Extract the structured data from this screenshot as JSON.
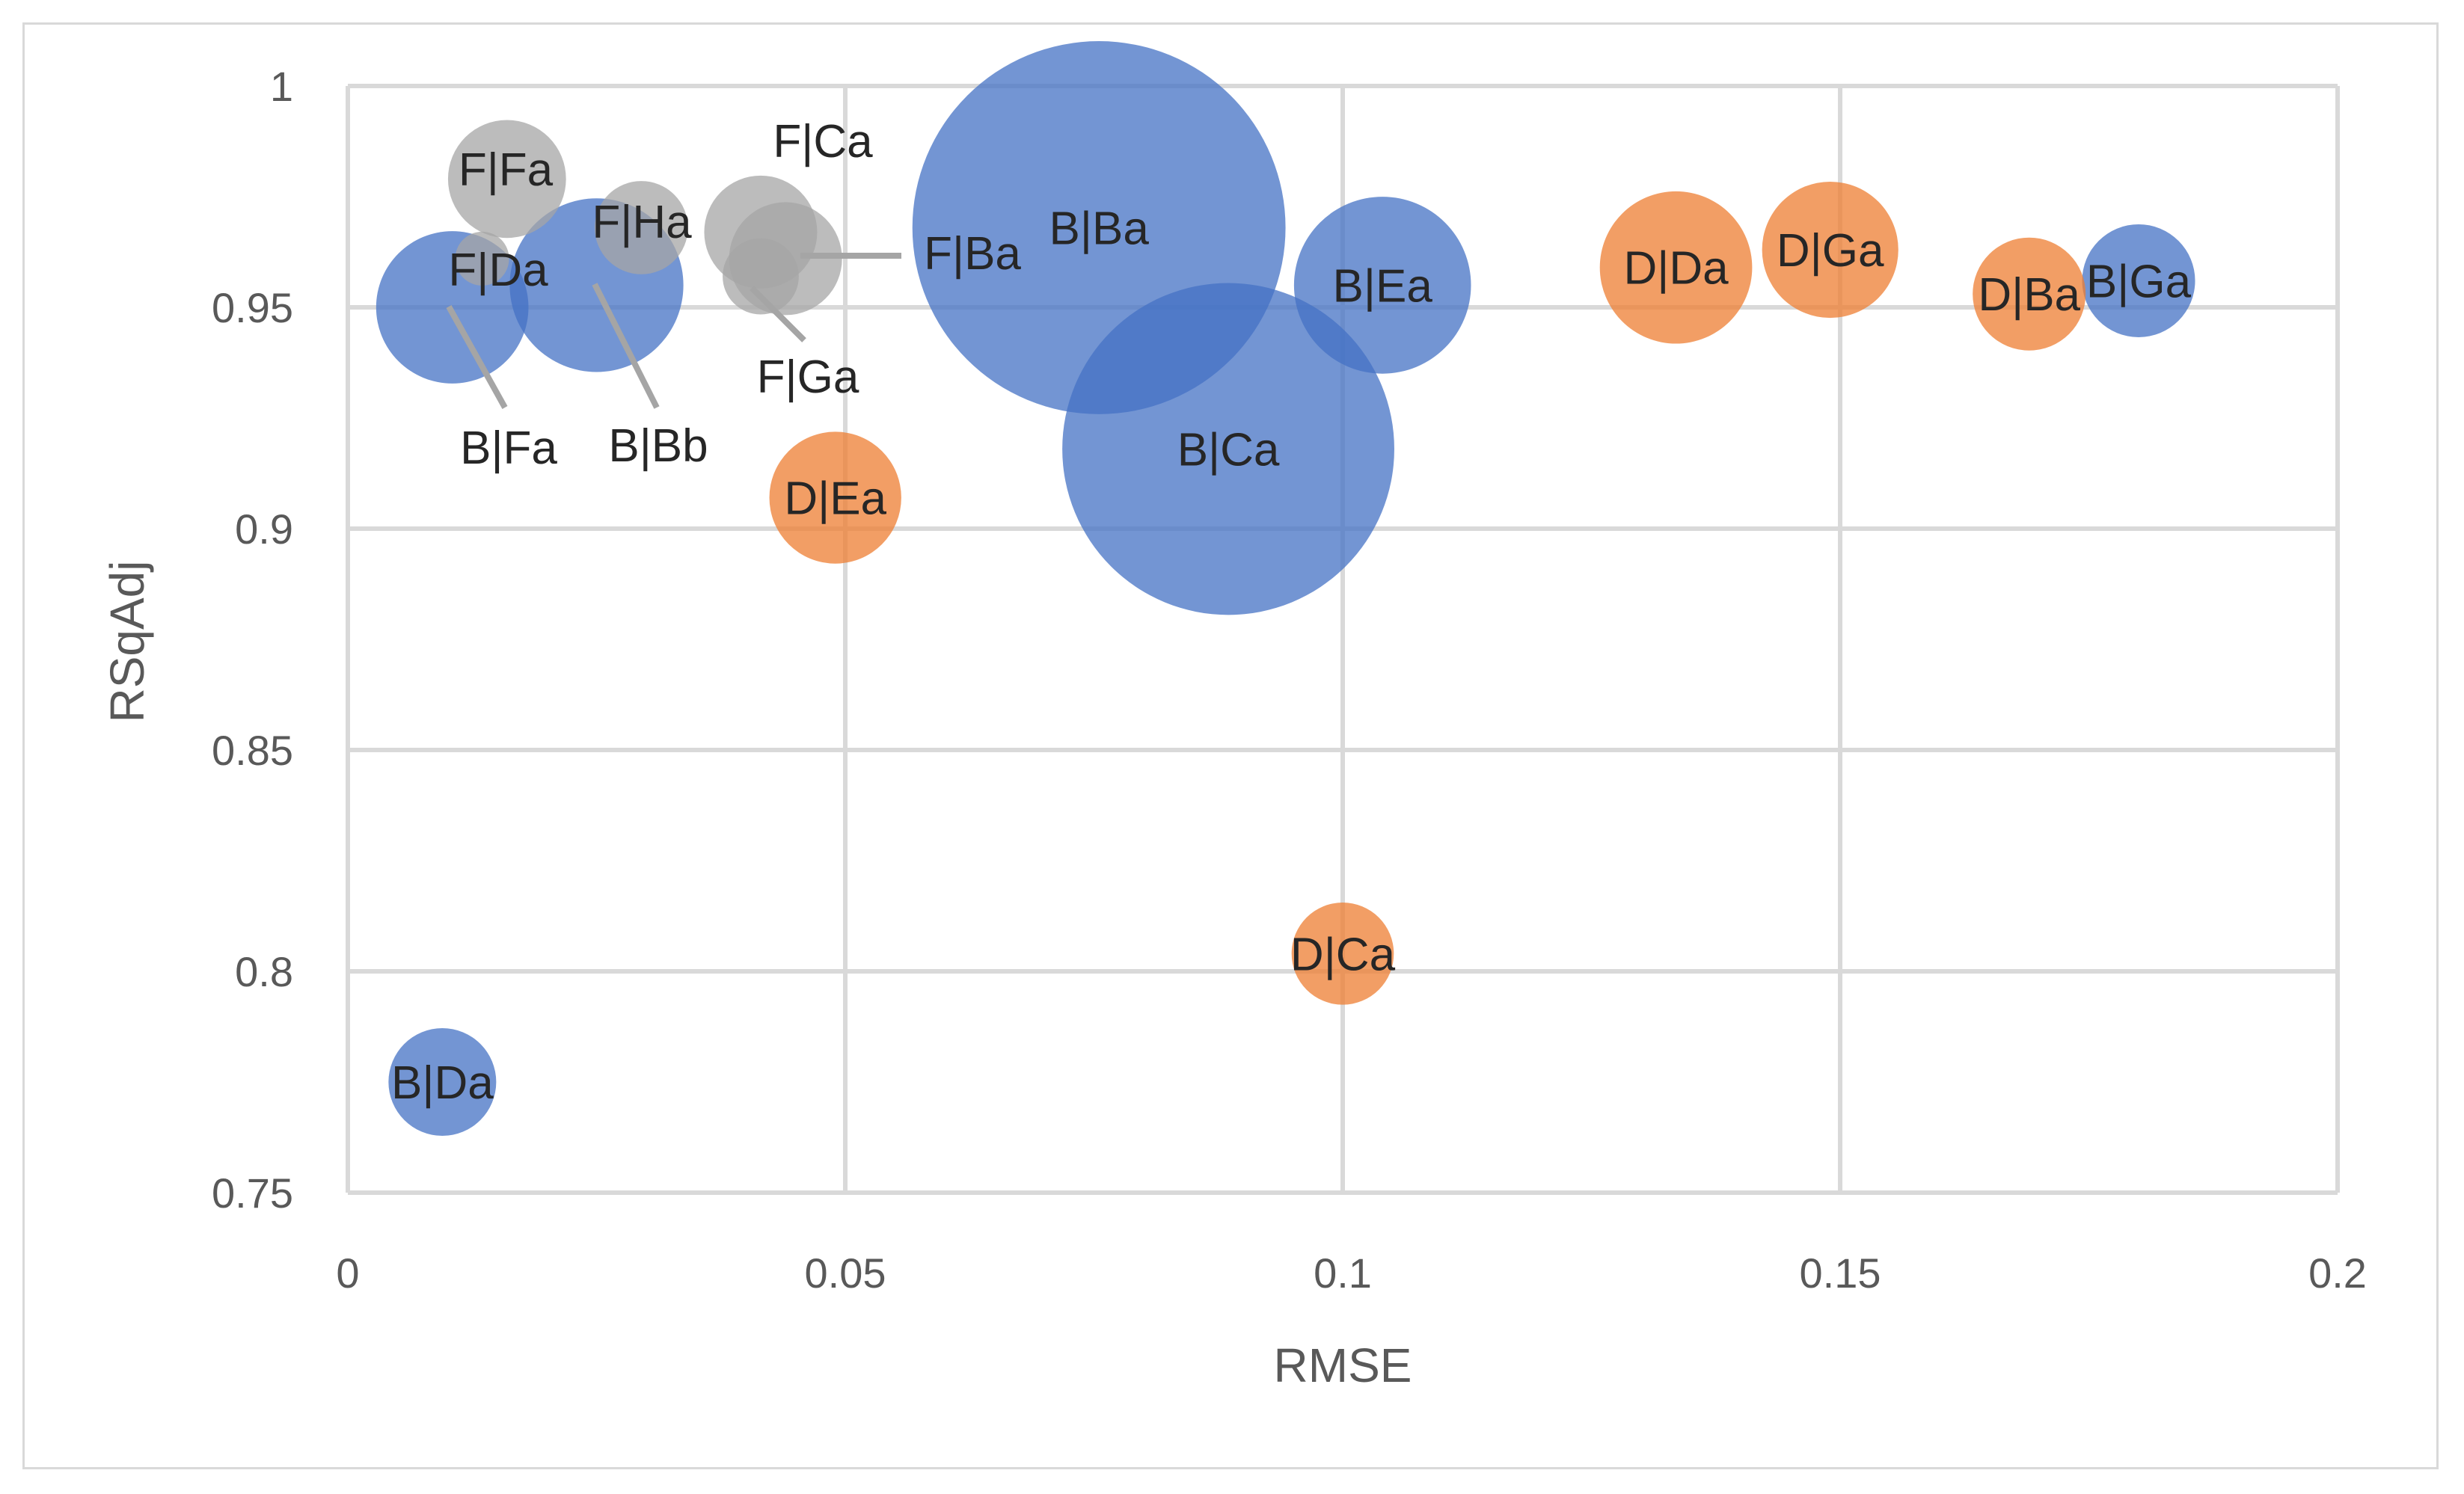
{
  "chart_data": {
    "type": "scatter",
    "subtype": "bubble",
    "title": "",
    "xlabel": "RMSE",
    "ylabel": "RSqAdj",
    "xlim": [
      0,
      0.2
    ],
    "ylim": [
      0.75,
      1
    ],
    "x_ticks": [
      0,
      0.05,
      0.1,
      0.15,
      0.2
    ],
    "y_ticks": [
      0.75,
      0.8,
      0.85,
      0.9,
      0.95,
      1
    ],
    "x_tick_labels": [
      "0",
      "0.05",
      "0.1",
      "0.15",
      "0.2"
    ],
    "y_tick_labels": [
      "0.75",
      "0.8",
      "0.85",
      "0.9",
      "0.95",
      "1"
    ],
    "grid": true,
    "legend": "none",
    "series": [
      {
        "name": "B",
        "color": "#4472c4",
        "points": [
          {
            "label": "B|Da",
            "x": 0.0095,
            "y": 0.775,
            "size": 1
          },
          {
            "label": "B|Fa",
            "x": 0.0105,
            "y": 0.95,
            "size": 2
          },
          {
            "label": "B|Bb",
            "x": 0.025,
            "y": 0.955,
            "size": 2.6
          },
          {
            "label": "B|Ba",
            "x": 0.0755,
            "y": 0.968,
            "size": 12
          },
          {
            "label": "B|Ca",
            "x": 0.0885,
            "y": 0.918,
            "size": 9.5
          },
          {
            "label": "B|Ea",
            "x": 0.104,
            "y": 0.955,
            "size": 2.7
          },
          {
            "label": "B|Ga",
            "x": 0.18,
            "y": 0.956,
            "size": 1.1
          }
        ]
      },
      {
        "name": "D",
        "color": "#ed7d31",
        "points": [
          {
            "label": "D|Ea",
            "x": 0.049,
            "y": 0.907,
            "size": 1.5
          },
          {
            "label": "D|Ca",
            "x": 0.1,
            "y": 0.804,
            "size": 0.9
          },
          {
            "label": "D|Da",
            "x": 0.1335,
            "y": 0.959,
            "size": 2.0
          },
          {
            "label": "D|Ga",
            "x": 0.149,
            "y": 0.963,
            "size": 1.6
          },
          {
            "label": "D|Ba",
            "x": 0.169,
            "y": 0.953,
            "size": 1.1
          }
        ]
      },
      {
        "name": "F",
        "color": "#a5a5a5",
        "points": [
          {
            "label": "F|Fa",
            "x": 0.016,
            "y": 0.979,
            "size": 1.2
          },
          {
            "label": "F|Da",
            "x": 0.0135,
            "y": 0.961,
            "size": 0.25
          },
          {
            "label": "F|Ha",
            "x": 0.0295,
            "y": 0.968,
            "size": 0.75
          },
          {
            "label": "F|Ca",
            "x": 0.0415,
            "y": 0.967,
            "size": 1.1
          },
          {
            "label": "F|Ga",
            "x": 0.0415,
            "y": 0.957,
            "size": 0.5
          },
          {
            "label": "F|Ba",
            "x": 0.044,
            "y": 0.961,
            "size": 1.1
          }
        ]
      }
    ]
  }
}
